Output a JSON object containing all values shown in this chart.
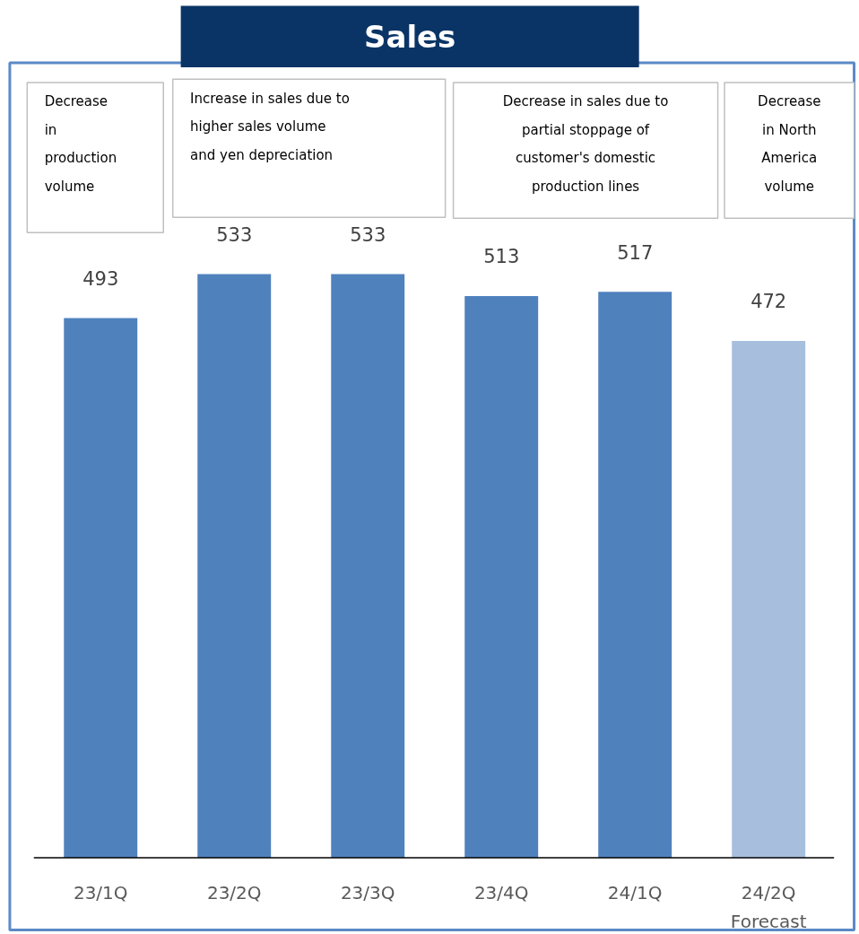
{
  "chart_data": {
    "type": "bar",
    "title": "Sales",
    "categories": [
      "23/1Q",
      "23/2Q",
      "23/3Q",
      "23/4Q",
      "24/1Q",
      "24/2Q\nForecast"
    ],
    "values": [
      493,
      533,
      533,
      513,
      517,
      472
    ],
    "colors": [
      "#4f81bd",
      "#4f81bd",
      "#4f81bd",
      "#4f81bd",
      "#4f81bd",
      "#a7bfdd"
    ],
    "data_labels": true,
    "annotations": [
      "Decrease\nin\nproduction\nvolume",
      "Increase in sales due to\nhigher sales volume\nand yen depreciation",
      "Decrease in sales due to\npartial stoppage of\ncustomer's domestic\nproduction lines",
      "Decrease\nin North\nAmerica\nvolume"
    ]
  }
}
